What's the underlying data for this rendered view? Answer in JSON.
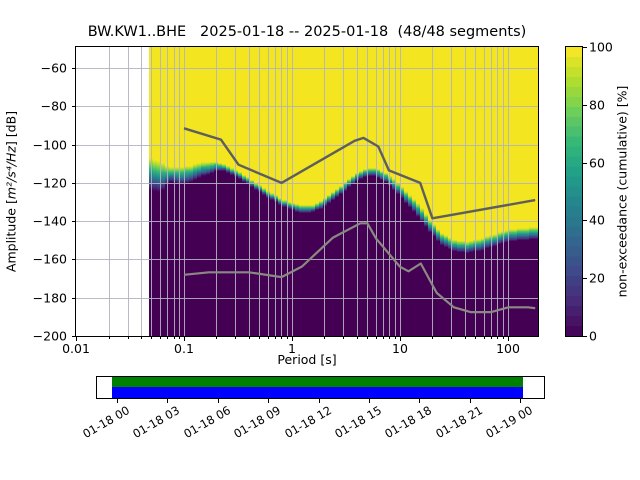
{
  "title": "BW.KW1..BHE   2025-01-18 -- 2025-01-18  (48/48 segments)",
  "axes": {
    "x": {
      "label": "Period [s]",
      "scale": "log",
      "lim": [
        0.01,
        190
      ],
      "major_ticks": [
        0.01,
        0.1,
        1,
        10,
        100
      ],
      "major_tick_labels": [
        "0.01",
        "0.1",
        "1",
        "10",
        "100"
      ]
    },
    "y": {
      "label_prefix": "Amplitude [",
      "label_math": "m²/s⁴/Hz",
      "label_suffix": "] [dB]",
      "lim": [
        -200,
        -49
      ],
      "ticks": [
        -60,
        -80,
        -100,
        -120,
        -140,
        -160,
        -180,
        -200
      ],
      "tick_labels": [
        "−60",
        "−80",
        "−100",
        "−120",
        "−140",
        "−160",
        "−180",
        "−200"
      ]
    }
  },
  "colorbar": {
    "label": "non-exceedance (cumulative) [%]",
    "lim": [
      0,
      100
    ],
    "ticks": [
      0,
      20,
      40,
      60,
      80,
      100
    ],
    "tick_labels": [
      "0",
      "20",
      "40",
      "60",
      "80",
      "100"
    ],
    "colormap": "viridis",
    "anchors": [
      "#440154",
      "#482878",
      "#3e4989",
      "#31688e",
      "#26828e",
      "#1f9e89",
      "#35b779",
      "#6ece58",
      "#b5de2b",
      "#fde725"
    ]
  },
  "chart_data": {
    "type": "heatmap",
    "title": "BW.KW1..BHE   2025-01-18 -- 2025-01-18  (48/48 segments)",
    "xlabel": "Period [s]",
    "ylabel": "Amplitude [m^2/s^4/Hz] [dB]",
    "zlabel": "non-exceedance (cumulative) [%]",
    "xlim": [
      0.01,
      190
    ],
    "ylim": [
      -200,
      -49
    ],
    "grid": true,
    "data_period_range": [
      0.0478,
      190
    ],
    "transition_band_comment": "period [s], dB where cumulative drops below ~99% (yellow ends), dB where it reaches ~1% (dark begins)",
    "transition_band": [
      [
        0.048,
        -106.7,
        -123.4
      ],
      [
        0.0625,
        -109.3,
        -125.0
      ],
      [
        0.074,
        -111.9,
        -119.3
      ],
      [
        0.092,
        -111.9,
        -120.8
      ],
      [
        0.119,
        -110.9,
        -119.3
      ],
      [
        0.153,
        -109.3,
        -116.6
      ],
      [
        0.197,
        -109.3,
        -114.0
      ],
      [
        0.225,
        -109.8,
        -113.5
      ],
      [
        0.29,
        -112.4,
        -116.1
      ],
      [
        0.427,
        -118.2,
        -121.9
      ],
      [
        0.626,
        -124.5,
        -128.2
      ],
      [
        0.918,
        -129.7,
        -133.4
      ],
      [
        1.19,
        -131.8,
        -135.5
      ],
      [
        1.54,
        -131.8,
        -135.5
      ],
      [
        1.97,
        -128.7,
        -132.9
      ],
      [
        2.56,
        -124.0,
        -128.2
      ],
      [
        3.32,
        -118.7,
        -122.9
      ],
      [
        4.27,
        -114.0,
        -118.2
      ],
      [
        5.51,
        -111.9,
        -116.1
      ],
      [
        7.12,
        -114.0,
        -118.7
      ],
      [
        9.2,
        -118.7,
        -124.5
      ],
      [
        11.9,
        -125.0,
        -131.3
      ],
      [
        15.3,
        -131.3,
        -138.7
      ],
      [
        19.8,
        -140.2,
        -146.5
      ],
      [
        25.5,
        -146.5,
        -152.8
      ],
      [
        33.0,
        -150.2,
        -156.0
      ],
      [
        42.6,
        -150.7,
        -156.5
      ],
      [
        55.0,
        -149.2,
        -155.4
      ],
      [
        71.1,
        -147.1,
        -153.4
      ],
      [
        91.9,
        -145.0,
        -151.3
      ],
      [
        119,
        -143.9,
        -150.2
      ],
      [
        153,
        -143.4,
        -149.7
      ],
      [
        186,
        -142.9,
        -149.2
      ]
    ],
    "noise_models": {
      "nhnm": [
        [
          0.1,
          -91.5
        ],
        [
          0.22,
          -97.4
        ],
        [
          0.32,
          -110.5
        ],
        [
          0.8,
          -120.0
        ],
        [
          3.8,
          -98.0
        ],
        [
          4.6,
          -96.5
        ],
        [
          6.3,
          -101.0
        ],
        [
          7.9,
          -113.5
        ],
        [
          15.4,
          -120.0
        ],
        [
          20.0,
          -138.5
        ],
        [
          179,
          -129.0
        ]
      ],
      "nlnm": [
        [
          0.1,
          -168.0
        ],
        [
          0.17,
          -166.7
        ],
        [
          0.4,
          -166.7
        ],
        [
          0.8,
          -169.2
        ],
        [
          1.24,
          -163.7
        ],
        [
          2.4,
          -148.6
        ],
        [
          4.3,
          -141.1
        ],
        [
          5.0,
          -141.1
        ],
        [
          6.0,
          -149.0
        ],
        [
          10.0,
          -163.8
        ],
        [
          12.0,
          -166.2
        ],
        [
          15.6,
          -162.1
        ],
        [
          21.9,
          -177.5
        ],
        [
          31.6,
          -185.0
        ],
        [
          45.0,
          -187.5
        ],
        [
          70.0,
          -187.5
        ],
        [
          101.0,
          -185.0
        ],
        [
          154.0,
          -185.0
        ],
        [
          179.0,
          -185.5
        ]
      ]
    },
    "colors": {
      "high": "#f3e51f",
      "low": "#440154",
      "nhnm_line": "#5e5e5e",
      "nlnm_line": "#8a8a82",
      "grid": "#b3b4bd"
    }
  },
  "timeline": {
    "tick_labels": [
      "01-18 00",
      "01-18 03",
      "01-18 06",
      "01-18 09",
      "01-18 12",
      "01-18 15",
      "01-18 18",
      "01-18 21",
      "01-19 00"
    ],
    "bar_colors": {
      "top": "#008000",
      "bottom": "#0000ff"
    },
    "bar_start_frac": -0.012,
    "bar_end_frac": 1.007
  }
}
